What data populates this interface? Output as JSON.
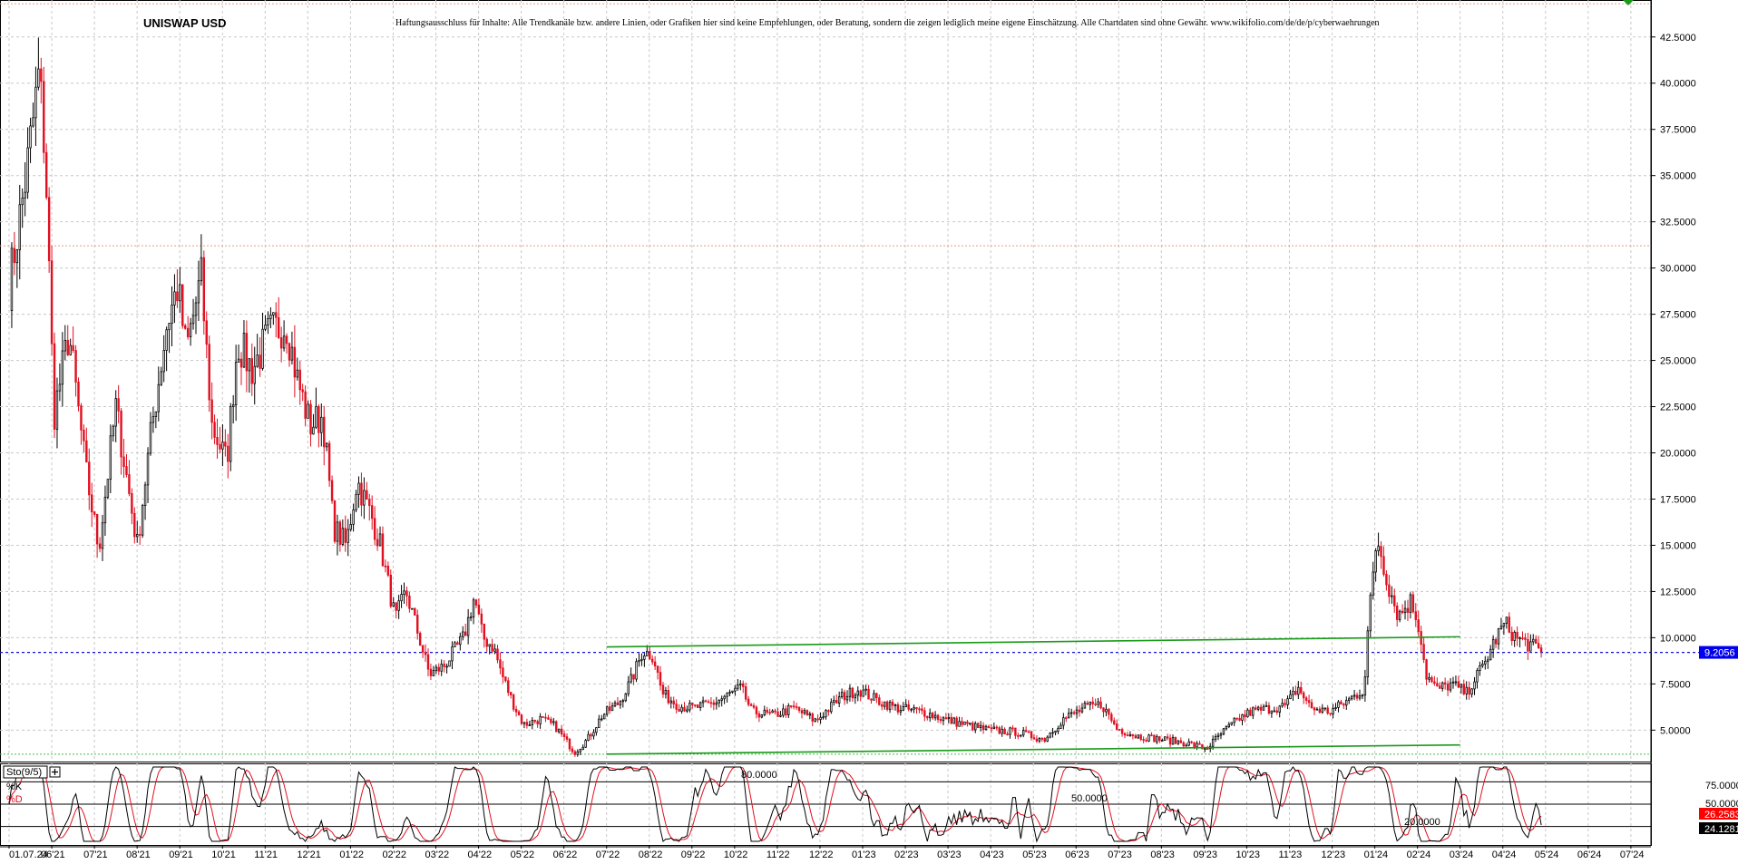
{
  "header": {
    "title": "UNISWAP USD",
    "disclaimer": "Haftungsausschluss für Inhalte: Alle Trendkanäle bzw. andere Linien, oder Grafiken hier sind keine Empfehlungen, oder Beratung, sondern die zeigen lediglich meine eigene Einschätzung. Alle Chartdaten sind ohne Gewähr. www.wikifolio.com/de/de/p/cyberwaehrungen"
  },
  "colors": {
    "up": "#000000",
    "down": "#e01020",
    "trend": "#1a9a1a",
    "grid": "#c8c8c8",
    "current_line": "#1010dd",
    "current_badge": "#0000ee",
    "resistance": "#e0a080",
    "support_dotted": "#40c040",
    "stoch_k": "#000000",
    "stoch_d": "#e01020"
  },
  "chart_data": [
    {
      "type": "candlestick",
      "title": "UNISWAP USD",
      "ylim": [
        3.3,
        44.5
      ],
      "y_ticks": [
        "5.0000",
        "7.5000",
        "10.0000",
        "12.5000",
        "15.0000",
        "17.5000",
        "20.0000",
        "22.5000",
        "25.0000",
        "27.5000",
        "30.0000",
        "32.5000",
        "35.0000",
        "37.5000",
        "40.0000",
        "42.5000"
      ],
      "x_ticks": [
        "01.07.24",
        "06'21",
        "07'21",
        "08'21",
        "09'21",
        "10'21",
        "11'21",
        "12'21",
        "01'22",
        "02'22",
        "03'22",
        "04'22",
        "05'22",
        "06'22",
        "07'22",
        "08'22",
        "09'22",
        "10'22",
        "11'22",
        "12'22",
        "01'23",
        "02'23",
        "03'23",
        "04'23",
        "05'23",
        "06'23",
        "07'23",
        "08'23",
        "09'23",
        "10'23",
        "11'23",
        "12'23",
        "01'24",
        "02'24",
        "03'24",
        "04'24",
        "05'24",
        "06'24",
        "07'24"
      ],
      "current_price": 9.2056,
      "current_price_label": "9.2056",
      "reference_lines": [
        {
          "kind": "resistance",
          "y": 31.2
        },
        {
          "kind": "top",
          "y": 44.3
        },
        {
          "kind": "support",
          "y": 3.7
        }
      ],
      "trend_lines": [
        {
          "x0": "07'22",
          "y0": 9.5,
          "x1": "03'24",
          "y1": 10.05
        },
        {
          "x0": "07'22",
          "y0": 3.7,
          "x1": "03'24",
          "y1": 4.2
        }
      ],
      "path_anchors": [
        [
          "01.07.24",
          29.0
        ],
        [
          0.4,
          35.0
        ],
        [
          0.7,
          40.5
        ],
        [
          0.85,
          36.0
        ],
        [
          1.05,
          22.0
        ],
        [
          1.4,
          26.5
        ],
        [
          1.8,
          19.0
        ],
        [
          2.1,
          14.8
        ],
        [
          2.5,
          22.5
        ],
        [
          3.0,
          15.0
        ],
        [
          3.35,
          21.5
        ],
        [
          3.7,
          27.0
        ],
        [
          3.95,
          29.0
        ],
        [
          4.15,
          25.5
        ],
        [
          4.5,
          29.5
        ],
        [
          4.75,
          21.5
        ],
        [
          5.1,
          19.5
        ],
        [
          5.35,
          26.0
        ],
        [
          5.7,
          24.5
        ],
        [
          6.1,
          26.5
        ],
        [
          6.5,
          27.0
        ],
        [
          6.75,
          24.0
        ],
        [
          7.05,
          21.5
        ],
        [
          7.35,
          22.0
        ],
        [
          7.6,
          16.0
        ],
        [
          7.9,
          15.0
        ],
        [
          8.15,
          18.5
        ],
        [
          8.5,
          16.5
        ],
        [
          8.7,
          15.0
        ],
        [
          9.05,
          11.0
        ],
        [
          9.3,
          12.5
        ],
        [
          9.55,
          10.5
        ],
        [
          9.85,
          8.0
        ],
        [
          10.2,
          8.5
        ],
        [
          10.65,
          10.0
        ],
        [
          10.9,
          12.2
        ],
        [
          11.1,
          10.0
        ],
        [
          11.35,
          9.5
        ],
        [
          11.55,
          8.0
        ],
        [
          11.8,
          6.5
        ],
        [
          12.05,
          5.3
        ],
        [
          12.45,
          5.6
        ],
        [
          12.8,
          5.2
        ],
        [
          13.25,
          3.8
        ],
        [
          13.55,
          4.5
        ],
        [
          13.9,
          5.8
        ],
        [
          14.3,
          6.5
        ],
        [
          14.6,
          7.8
        ],
        [
          14.85,
          9.3
        ],
        [
          15.1,
          9.0
        ],
        [
          15.3,
          7.0
        ],
        [
          15.7,
          6.3
        ],
        [
          16.05,
          6.2
        ],
        [
          16.55,
          6.5
        ],
        [
          17.15,
          7.3
        ],
        [
          17.4,
          6.0
        ],
        [
          17.9,
          5.8
        ],
        [
          18.4,
          6.2
        ],
        [
          18.9,
          5.5
        ],
        [
          19.5,
          6.8
        ],
        [
          19.9,
          7.2
        ],
        [
          20.35,
          6.6
        ],
        [
          20.8,
          6.2
        ],
        [
          21.4,
          6.0
        ],
        [
          21.9,
          5.6
        ],
        [
          22.4,
          5.3
        ],
        [
          22.95,
          5.0
        ],
        [
          23.6,
          4.9
        ],
        [
          24.25,
          4.5
        ],
        [
          24.7,
          5.6
        ],
        [
          25.2,
          6.2
        ],
        [
          25.6,
          6.4
        ],
        [
          25.95,
          5.1
        ],
        [
          26.4,
          4.7
        ],
        [
          27.0,
          4.5
        ],
        [
          27.6,
          4.3
        ],
        [
          28.05,
          4.0
        ],
        [
          28.4,
          4.8
        ],
        [
          28.8,
          5.6
        ],
        [
          29.1,
          6.0
        ],
        [
          29.6,
          6.2
        ],
        [
          29.9,
          6.3
        ],
        [
          30.2,
          7.3
        ],
        [
          30.5,
          6.2
        ],
        [
          30.95,
          6.0
        ],
        [
          31.3,
          6.5
        ],
        [
          31.75,
          7.2
        ],
        [
          31.85,
          10.8
        ],
        [
          32.05,
          15.5
        ],
        [
          32.3,
          13.0
        ],
        [
          32.55,
          11.2
        ],
        [
          32.85,
          12.0
        ],
        [
          33.05,
          10.5
        ],
        [
          33.2,
          8.0
        ],
        [
          33.45,
          7.2
        ],
        [
          33.8,
          7.5
        ],
        [
          34.15,
          7.0
        ],
        [
          34.35,
          7.8
        ],
        [
          34.55,
          8.5
        ],
        [
          34.8,
          9.8
        ],
        [
          35.05,
          10.8
        ],
        [
          35.3,
          10.0
        ],
        [
          35.65,
          9.6
        ],
        [
          35.9,
          9.2
        ]
      ]
    },
    {
      "type": "line",
      "title": "Sto(9/5)",
      "series": [
        {
          "name": "%K"
        },
        {
          "name": "%D"
        }
      ],
      "levels": [
        {
          "label": "80.0000",
          "y": 80
        },
        {
          "label": "50.0000",
          "y": 50
        },
        {
          "label": "20.0000",
          "y": 20
        }
      ],
      "right_labels": [
        "75.0000",
        "50.0000"
      ],
      "k_value": "24.1281",
      "d_value": "26.2583",
      "ylim": [
        0,
        100
      ]
    }
  ]
}
